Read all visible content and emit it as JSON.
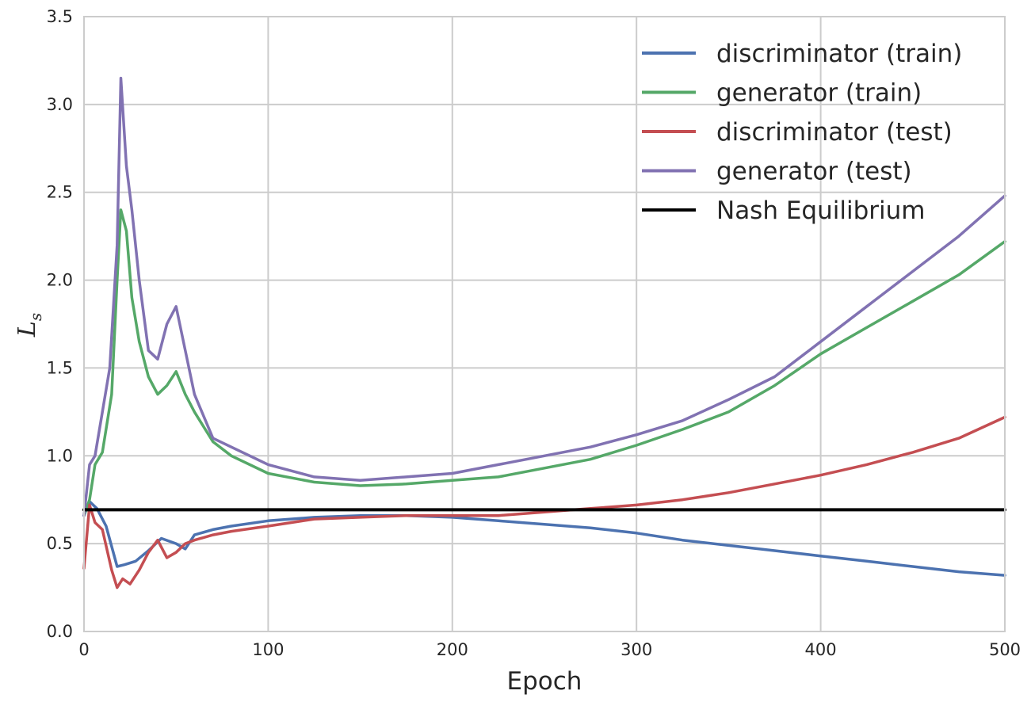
{
  "chart_data": {
    "type": "line",
    "xlabel": "Epoch",
    "ylabel": "L",
    "ylabel_sub": "s",
    "xlim": [
      0,
      500
    ],
    "ylim": [
      0.0,
      3.5
    ],
    "xticks": [
      "0",
      "100",
      "200",
      "300",
      "400",
      "500"
    ],
    "yticks": [
      "0.0",
      "0.5",
      "1.0",
      "1.5",
      "2.0",
      "2.5",
      "3.0",
      "3.5"
    ],
    "grid": true,
    "legend_position": "top-right",
    "series": [
      {
        "name": "discriminator (train)",
        "color": "#4c72b0",
        "x": [
          0,
          3,
          7,
          12,
          18,
          22,
          28,
          35,
          42,
          50,
          55,
          60,
          70,
          80,
          100,
          125,
          150,
          175,
          200,
          225,
          250,
          275,
          300,
          325,
          350,
          375,
          400,
          425,
          450,
          475,
          500
        ],
        "values": [
          0.66,
          0.74,
          0.7,
          0.6,
          0.37,
          0.38,
          0.4,
          0.46,
          0.53,
          0.5,
          0.47,
          0.55,
          0.58,
          0.6,
          0.63,
          0.65,
          0.66,
          0.66,
          0.65,
          0.63,
          0.61,
          0.59,
          0.56,
          0.52,
          0.49,
          0.46,
          0.43,
          0.4,
          0.37,
          0.34,
          0.32
        ]
      },
      {
        "name": "generator (train)",
        "color": "#55a868",
        "x": [
          0,
          3,
          6,
          10,
          15,
          18,
          20,
          23,
          26,
          30,
          35,
          40,
          45,
          50,
          55,
          60,
          70,
          80,
          100,
          125,
          150,
          175,
          200,
          225,
          250,
          275,
          300,
          325,
          350,
          375,
          400,
          425,
          450,
          475,
          500
        ],
        "values": [
          0.66,
          0.75,
          0.95,
          1.02,
          1.35,
          2.0,
          2.4,
          2.28,
          1.9,
          1.65,
          1.45,
          1.35,
          1.4,
          1.48,
          1.35,
          1.25,
          1.08,
          1.0,
          0.9,
          0.85,
          0.83,
          0.84,
          0.86,
          0.88,
          0.93,
          0.98,
          1.06,
          1.15,
          1.25,
          1.4,
          1.58,
          1.73,
          1.88,
          2.03,
          2.22
        ]
      },
      {
        "name": "discriminator (test)",
        "color": "#c44e52",
        "x": [
          0,
          3,
          6,
          10,
          15,
          18,
          21,
          25,
          30,
          35,
          40,
          45,
          50,
          55,
          60,
          70,
          80,
          100,
          125,
          150,
          175,
          200,
          225,
          250,
          275,
          300,
          325,
          350,
          375,
          400,
          425,
          450,
          475,
          500
        ],
        "values": [
          0.36,
          0.72,
          0.62,
          0.58,
          0.35,
          0.25,
          0.3,
          0.27,
          0.35,
          0.45,
          0.52,
          0.42,
          0.45,
          0.5,
          0.52,
          0.55,
          0.57,
          0.6,
          0.64,
          0.65,
          0.66,
          0.66,
          0.66,
          0.68,
          0.7,
          0.72,
          0.75,
          0.79,
          0.84,
          0.89,
          0.95,
          1.02,
          1.1,
          1.22
        ]
      },
      {
        "name": "generator (test)",
        "color": "#8172b2",
        "x": [
          0,
          3,
          6,
          10,
          14,
          18,
          20,
          23,
          26,
          30,
          35,
          40,
          45,
          50,
          55,
          60,
          70,
          80,
          90,
          100,
          125,
          150,
          175,
          200,
          225,
          250,
          275,
          300,
          325,
          350,
          375,
          400,
          425,
          450,
          475,
          500
        ],
        "values": [
          0.66,
          0.95,
          1.0,
          1.25,
          1.5,
          2.2,
          3.15,
          2.65,
          2.4,
          2.0,
          1.6,
          1.55,
          1.75,
          1.85,
          1.6,
          1.35,
          1.1,
          1.05,
          1.0,
          0.95,
          0.88,
          0.86,
          0.88,
          0.9,
          0.95,
          1.0,
          1.05,
          1.12,
          1.2,
          1.32,
          1.45,
          1.65,
          1.85,
          2.05,
          2.25,
          2.48
        ]
      },
      {
        "name": "Nash Equilibrium",
        "color": "#000000",
        "x": [
          0,
          500
        ],
        "values": [
          0.693,
          0.693
        ]
      }
    ]
  }
}
